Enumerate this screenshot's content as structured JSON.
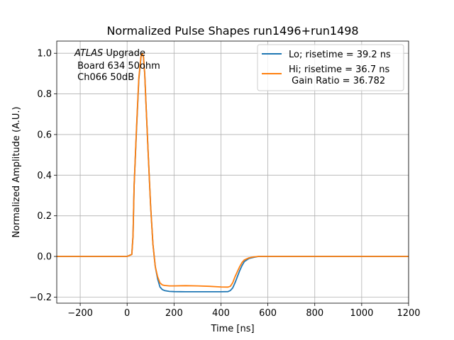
{
  "chart_data": {
    "type": "line",
    "title": "Normalized Pulse Shapes run1496+run1498",
    "xlabel": "Time [ns]",
    "ylabel": "Normalized Amplitude (A.U.)",
    "xlim": [
      -300,
      1200
    ],
    "ylim": [
      -0.23,
      1.06
    ],
    "xticks": [
      -200,
      0,
      200,
      400,
      600,
      800,
      1000,
      1200
    ],
    "xtick_labels": [
      "−200",
      "0",
      "200",
      "400",
      "600",
      "800",
      "1000",
      "1200"
    ],
    "yticks": [
      -0.2,
      0.0,
      0.2,
      0.4,
      0.6,
      0.8,
      1.0
    ],
    "ytick_labels": [
      "−0.2",
      "0.0",
      "0.2",
      "0.4",
      "0.6",
      "0.8",
      "1.0"
    ],
    "grid": true,
    "legend_position": "top-right",
    "annotation": {
      "italic": "ATLAS",
      "line1": " Upgrade",
      "line2": " Board 634 50ohm",
      "line3": " Ch066 50dB"
    },
    "series": [
      {
        "name": "Lo; risetime = 39.2 ns",
        "color": "#1f77b4",
        "x": [
          -300,
          0,
          20,
          25,
          30,
          40,
          50,
          60,
          65,
          70,
          75,
          80,
          90,
          100,
          110,
          120,
          130,
          140,
          150,
          160,
          180,
          200,
          250,
          300,
          350,
          400,
          430,
          440,
          450,
          460,
          470,
          480,
          490,
          500,
          520,
          540,
          560,
          600,
          800,
          1000,
          1200
        ],
        "y": [
          0.0,
          0.0,
          0.01,
          0.1,
          0.35,
          0.62,
          0.87,
          0.99,
          1.0,
          0.98,
          0.9,
          0.76,
          0.5,
          0.25,
          0.06,
          -0.05,
          -0.11,
          -0.15,
          -0.163,
          -0.168,
          -0.172,
          -0.173,
          -0.174,
          -0.174,
          -0.174,
          -0.174,
          -0.173,
          -0.168,
          -0.155,
          -0.13,
          -0.1,
          -0.07,
          -0.045,
          -0.025,
          -0.01,
          -0.004,
          0.0,
          0.0,
          0.0,
          0.0,
          0.0
        ]
      },
      {
        "name": "Hi; risetime = 36.7 ns\n Gain Ratio = 36.782",
        "color": "#ff7f0e",
        "x": [
          -300,
          0,
          20,
          25,
          30,
          40,
          50,
          60,
          65,
          70,
          75,
          80,
          90,
          100,
          110,
          120,
          130,
          140,
          150,
          160,
          180,
          200,
          250,
          300,
          350,
          400,
          430,
          440,
          450,
          460,
          470,
          480,
          490,
          500,
          520,
          540,
          560,
          600,
          800,
          1000,
          1200
        ],
        "y": [
          0.0,
          0.0,
          0.01,
          0.1,
          0.35,
          0.63,
          0.88,
          0.99,
          1.0,
          0.98,
          0.9,
          0.76,
          0.5,
          0.25,
          0.06,
          -0.05,
          -0.1,
          -0.13,
          -0.14,
          -0.143,
          -0.145,
          -0.145,
          -0.144,
          -0.145,
          -0.147,
          -0.15,
          -0.151,
          -0.147,
          -0.13,
          -0.1,
          -0.075,
          -0.05,
          -0.03,
          -0.017,
          -0.007,
          -0.002,
          0.0,
          0.0,
          0.0,
          0.0,
          0.0
        ]
      }
    ]
  }
}
